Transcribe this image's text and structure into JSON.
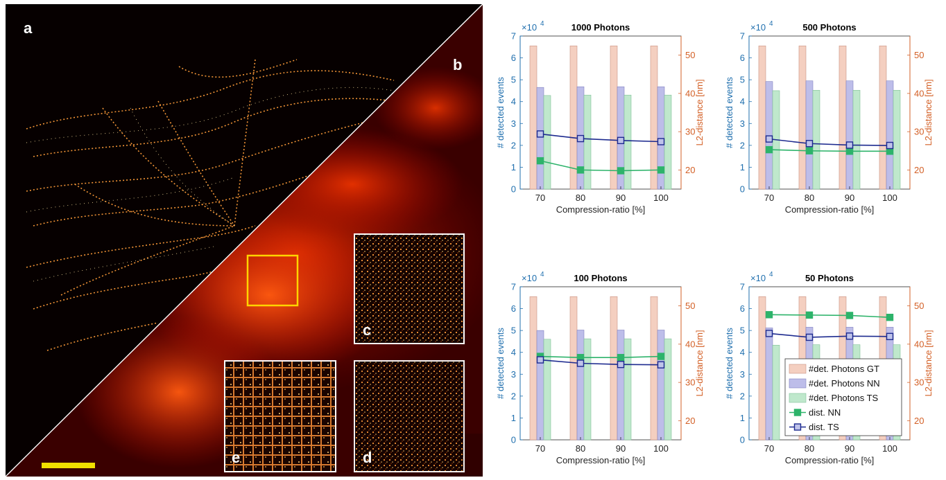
{
  "image": {
    "panel_labels": {
      "a": "a",
      "b": "b",
      "c": "c",
      "d": "d",
      "e": "e"
    }
  },
  "colors": {
    "gt": "#f4cfc0",
    "nn_bar": "#bdbde9",
    "ts_bar": "#bfe8cc",
    "dist_nn": "#2db36a",
    "dist_ts": "#1d2a8f",
    "left_axis": "#1f6fae",
    "right_axis": "#d35f25"
  },
  "chart_data": [
    {
      "type": "bar",
      "title": "1000 Photons",
      "xlabel": "Compression-ratio [%]",
      "ylabel": "# detected events",
      "y2label": "L2-distance [nm]",
      "y_exponent_base": "×10",
      "y_exponent_power": "4",
      "categories": [
        "70",
        "80",
        "90",
        "100"
      ],
      "ylim": [
        0,
        7
      ],
      "y2lim": [
        15,
        55
      ],
      "yticks": [
        "0",
        "1",
        "2",
        "3",
        "4",
        "5",
        "6",
        "7"
      ],
      "y2ticks": [
        "20",
        "30",
        "40",
        "50"
      ],
      "series": [
        {
          "name": "#det. Photons GT",
          "kind": "bar",
          "values": [
            6.55,
            6.55,
            6.55,
            6.55
          ]
        },
        {
          "name": "#det. Photons NN",
          "kind": "bar",
          "values": [
            4.65,
            4.68,
            4.68,
            4.68
          ]
        },
        {
          "name": "#det. Photons TS",
          "kind": "bar",
          "values": [
            4.28,
            4.3,
            4.3,
            4.3
          ]
        },
        {
          "name": "dist. NN",
          "kind": "line",
          "axis": "right",
          "values": [
            22.4,
            20.0,
            19.8,
            20.0
          ]
        },
        {
          "name": "dist. TS",
          "kind": "line",
          "axis": "right",
          "values": [
            29.4,
            28.2,
            27.7,
            27.4
          ]
        }
      ]
    },
    {
      "type": "bar",
      "title": "500 Photons",
      "xlabel": "Compression-ratio [%]",
      "ylabel": "# detected events",
      "y2label": "L2-distance [nm]",
      "y_exponent_base": "×10",
      "y_exponent_power": "4",
      "categories": [
        "70",
        "80",
        "90",
        "100"
      ],
      "ylim": [
        0,
        7
      ],
      "y2lim": [
        15,
        55
      ],
      "yticks": [
        "0",
        "1",
        "2",
        "3",
        "4",
        "5",
        "6",
        "7"
      ],
      "y2ticks": [
        "20",
        "30",
        "40",
        "50"
      ],
      "series": [
        {
          "name": "#det. Photons GT",
          "kind": "bar",
          "values": [
            6.55,
            6.55,
            6.55,
            6.55
          ]
        },
        {
          "name": "#det. Photons NN",
          "kind": "bar",
          "values": [
            4.92,
            4.95,
            4.95,
            4.95
          ]
        },
        {
          "name": "#det. Photons TS",
          "kind": "bar",
          "values": [
            4.5,
            4.52,
            4.52,
            4.52
          ]
        },
        {
          "name": "dist. NN",
          "kind": "line",
          "axis": "right",
          "values": [
            25.3,
            25.0,
            24.9,
            24.9
          ]
        },
        {
          "name": "dist. TS",
          "kind": "line",
          "axis": "right",
          "values": [
            28.1,
            26.9,
            26.5,
            26.4
          ]
        }
      ]
    },
    {
      "type": "bar",
      "title": "100 Photons",
      "xlabel": "Compression-ratio [%]",
      "ylabel": "# detected events",
      "y2label": "L2-distance [nm]",
      "y_exponent_base": "×10",
      "y_exponent_power": "4",
      "categories": [
        "70",
        "80",
        "90",
        "100"
      ],
      "ylim": [
        0,
        7
      ],
      "y2lim": [
        15,
        55
      ],
      "yticks": [
        "0",
        "1",
        "2",
        "3",
        "4",
        "5",
        "6",
        "7"
      ],
      "y2ticks": [
        "20",
        "30",
        "40",
        "50"
      ],
      "series": [
        {
          "name": "#det. Photons GT",
          "kind": "bar",
          "values": [
            6.55,
            6.55,
            6.55,
            6.55
          ]
        },
        {
          "name": "#det. Photons NN",
          "kind": "bar",
          "values": [
            5.0,
            5.02,
            5.02,
            5.02
          ]
        },
        {
          "name": "#det. Photons TS",
          "kind": "bar",
          "values": [
            4.6,
            4.62,
            4.62,
            4.62
          ]
        },
        {
          "name": "dist. NN",
          "kind": "line",
          "axis": "right",
          "values": [
            36.8,
            36.5,
            36.5,
            36.8
          ]
        },
        {
          "name": "dist. TS",
          "kind": "line",
          "axis": "right",
          "values": [
            35.9,
            35.0,
            34.7,
            34.6
          ]
        }
      ]
    },
    {
      "type": "bar",
      "title": "50 Photons",
      "xlabel": "Compression-ratio [%]",
      "ylabel": "# detected events",
      "y2label": "L2-distance [nm]",
      "y_exponent_base": "×10",
      "y_exponent_power": "4",
      "categories": [
        "70",
        "80",
        "90",
        "100"
      ],
      "ylim": [
        0,
        7
      ],
      "y2lim": [
        15,
        55
      ],
      "yticks": [
        "0",
        "1",
        "2",
        "3",
        "4",
        "5",
        "6",
        "7"
      ],
      "y2ticks": [
        "20",
        "30",
        "40",
        "50"
      ],
      "legend": true,
      "series": [
        {
          "name": "#det. Photons GT",
          "kind": "bar",
          "values": [
            6.55,
            6.55,
            6.55,
            6.55
          ]
        },
        {
          "name": "#det. Photons NN",
          "kind": "bar",
          "values": [
            5.12,
            5.15,
            5.15,
            5.15
          ]
        },
        {
          "name": "#det. Photons TS",
          "kind": "bar",
          "values": [
            4.33,
            4.35,
            4.35,
            4.35
          ]
        },
        {
          "name": "dist. NN",
          "kind": "line",
          "axis": "right",
          "values": [
            47.7,
            47.6,
            47.5,
            47.0
          ]
        },
        {
          "name": "dist. TS",
          "kind": "line",
          "axis": "right",
          "values": [
            42.8,
            41.8,
            42.1,
            42.0
          ]
        }
      ]
    }
  ]
}
